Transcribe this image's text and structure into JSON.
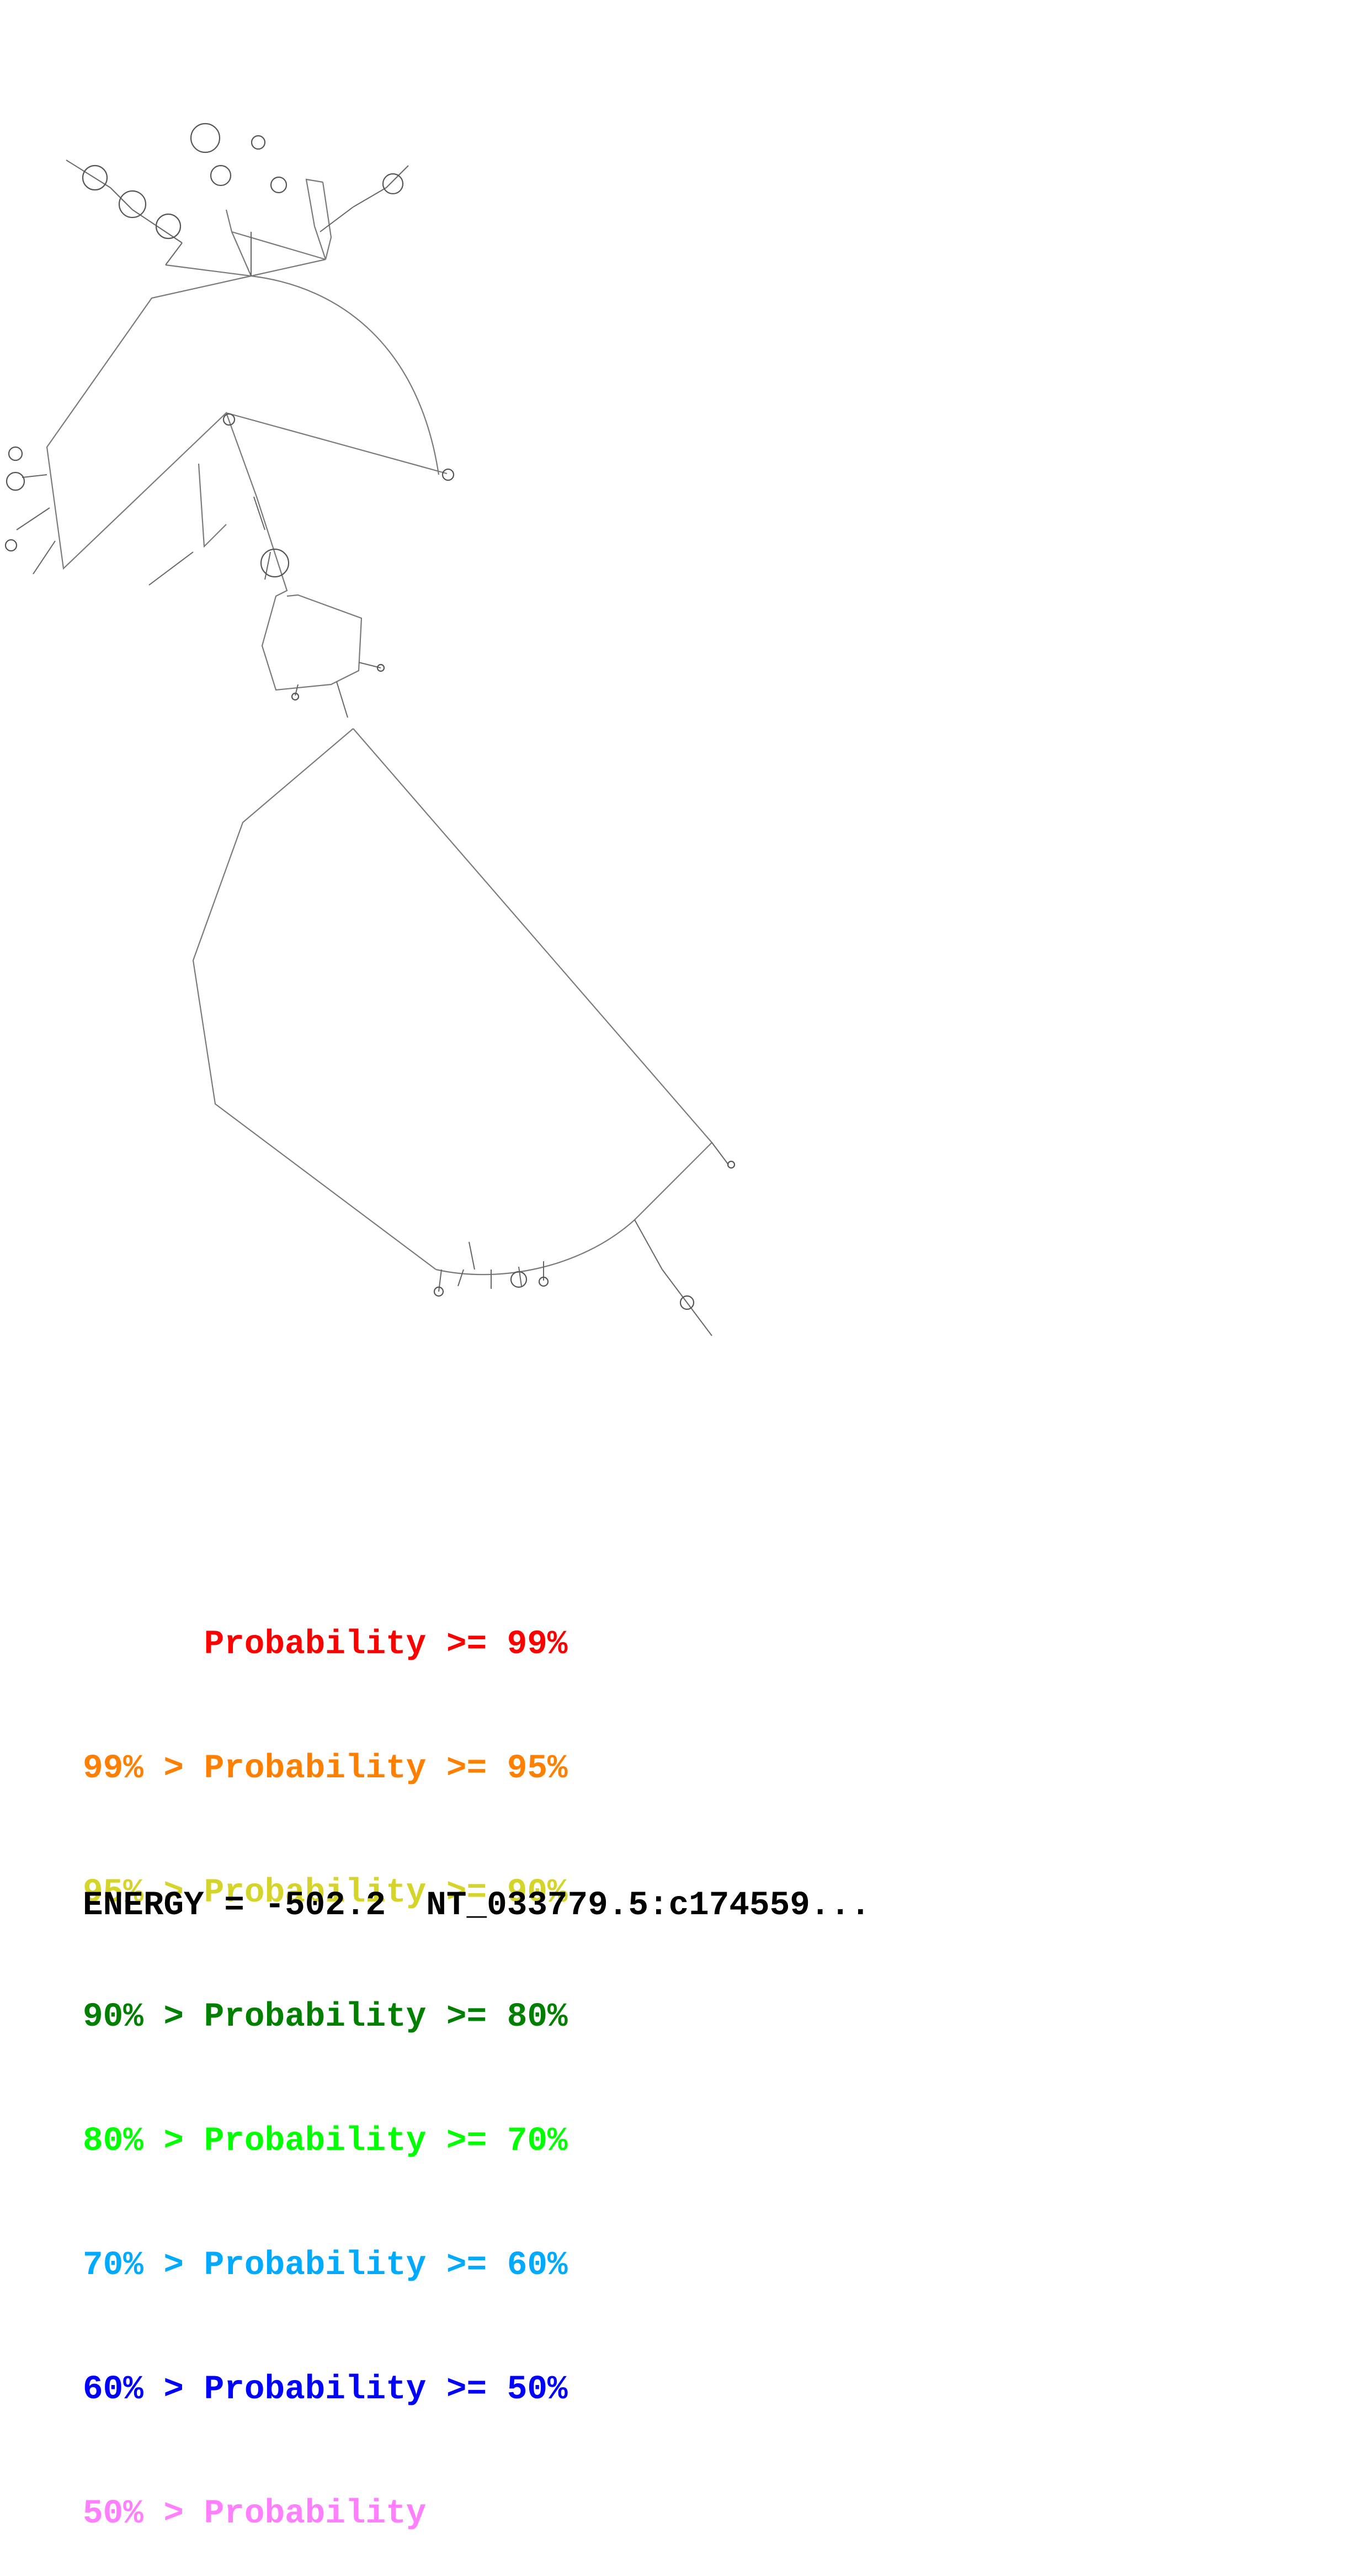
{
  "legend": [
    {
      "prefix": "",
      "label": "Probability >= 99%",
      "color": "#ff0000"
    },
    {
      "prefix": "99% > ",
      "label": "Probability >= 95%",
      "color": "#ff7f00"
    },
    {
      "prefix": "95% > ",
      "label": "Probability >= 90%",
      "color": "#d4d42a"
    },
    {
      "prefix": "90% > ",
      "label": "Probability >= 80%",
      "color": "#007f00"
    },
    {
      "prefix": "80% > ",
      "label": "Probability >= 70%",
      "color": "#00ff00"
    },
    {
      "prefix": "70% > ",
      "label": "Probability >= 60%",
      "color": "#00aaff"
    },
    {
      "prefix": "60% > ",
      "label": "Probability >= 50%",
      "color": "#0000ff"
    },
    {
      "prefix": "50% > ",
      "label": "Probability",
      "color": "#ff7fff"
    }
  ],
  "energy_label": "ENERGY = -502.2  NT_033779.5:c174559..."
}
